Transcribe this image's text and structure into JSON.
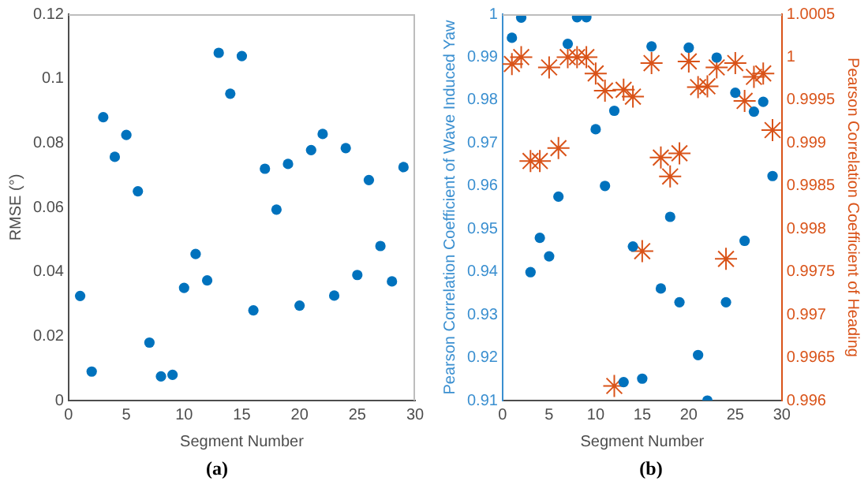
{
  "chart_data": [
    {
      "type": "scatter",
      "xlabel": "Segment Number",
      "ylabel": "RMSE (°)",
      "annotations": [
        "(a)"
      ],
      "x": [
        1,
        2,
        3,
        4,
        5,
        6,
        7,
        8,
        9,
        10,
        11,
        12,
        13,
        14,
        15,
        16,
        17,
        18,
        19,
        20,
        21,
        22,
        23,
        24,
        25,
        26,
        27,
        28,
        29
      ],
      "series": [
        {
          "color": "#0072bd",
          "values": [
            0.0325,
            0.009,
            0.088,
            0.0757,
            0.0825,
            0.065,
            0.018,
            0.0075,
            0.008,
            0.035,
            0.0455,
            0.0373,
            0.108,
            0.0953,
            0.107,
            0.028,
            0.072,
            0.0593,
            0.0735,
            0.0295,
            0.0778,
            0.0828,
            0.0326,
            0.0784,
            0.039,
            0.0685,
            0.048,
            0.037,
            0.0725
          ]
        }
      ],
      "xlim": [
        0,
        30
      ],
      "xticks": [
        0,
        5,
        10,
        15,
        20,
        25,
        30
      ],
      "ylim": [
        0,
        0.12
      ],
      "yticks": [
        0,
        0.02,
        0.04,
        0.06,
        0.08,
        0.1,
        0.12
      ],
      "marker": "circle",
      "grid": false,
      "legend": false
    },
    {
      "type": "scatter",
      "xlabel": "Segment Number",
      "ylabel": "Pearson Correlation Coefficient of Wave Induced Yaw",
      "y2label": "Pearson Correlation Coefficient of Heading",
      "annotations": [
        "(b)"
      ],
      "x": [
        1,
        2,
        3,
        4,
        5,
        6,
        7,
        8,
        9,
        10,
        11,
        12,
        13,
        14,
        15,
        16,
        17,
        18,
        19,
        20,
        21,
        22,
        23,
        24,
        25,
        26,
        27,
        28,
        29
      ],
      "series": [
        {
          "color": "#0072bd",
          "marker": "circle",
          "values": [
            0.9945,
            0.9992,
            0.9399,
            0.9479,
            0.9436,
            0.9575,
            0.9931,
            0.9993,
            0.9993,
            0.9732,
            0.96,
            0.9775,
            0.9143,
            0.9459,
            0.9151,
            0.9925,
            0.9361,
            0.9528,
            0.9329,
            0.9922,
            0.9206,
            0.91,
            0.9899,
            0.9329,
            0.9817,
            0.9472,
            0.9773,
            0.9796,
            0.9623
          ]
        },
        {
          "color": "#d95319",
          "marker": "cross",
          "axis": "y2",
          "values": [
            0.99992,
            1.0,
            0.99879,
            0.99879,
            0.99988,
            0.99894,
            1.0,
            1.0,
            1.0,
            0.99981,
            0.99961,
            0.99617,
            0.99962,
            0.99954,
            0.99774,
            0.99993,
            0.99883,
            0.99861,
            0.99888,
            0.99995,
            0.99965,
            0.99966,
            0.99988,
            0.99765,
            0.99993,
            0.99949,
            0.99977,
            0.99981,
            0.99915
          ]
        }
      ],
      "xlim": [
        0,
        30
      ],
      "xticks": [
        0,
        5,
        10,
        15,
        20,
        25,
        30
      ],
      "ylim": [
        0.91,
        1
      ],
      "yticks": [
        0.91,
        0.92,
        0.93,
        0.94,
        0.95,
        0.96,
        0.97,
        0.98,
        0.99,
        1
      ],
      "y2lim": [
        0.996,
        1.0005
      ],
      "y2ticks": [
        0.996,
        0.9965,
        0.997,
        0.9975,
        0.998,
        0.9985,
        0.999,
        0.9995,
        1,
        1.0005
      ],
      "grid": false,
      "legend": false
    }
  ]
}
